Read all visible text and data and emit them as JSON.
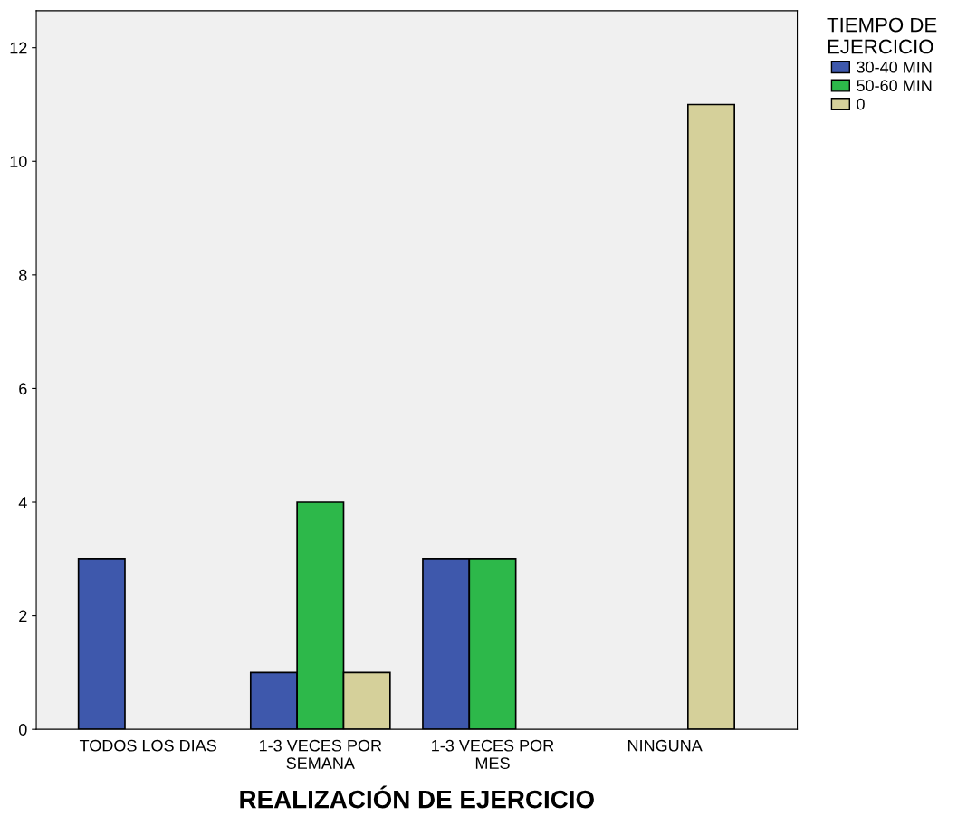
{
  "chart_data": {
    "type": "bar",
    "xlabel": "REALIZACIÓN DE EJERCICIO",
    "legend_title": "TIEMPO DE\nEJERCICIO",
    "categories": [
      "TODOS LOS DIAS",
      "1-3 VECES POR\nSEMANA",
      "1-3 VECES POR\nMES",
      "NINGUNA"
    ],
    "series": [
      {
        "name": "30-40 MIN",
        "color": "#3e58ac",
        "values": [
          3,
          1,
          3,
          null
        ]
      },
      {
        "name": "50-60 MIN",
        "color": "#2db84a",
        "values": [
          null,
          4,
          3,
          null
        ]
      },
      {
        "name": "0",
        "color": "#d5d09a",
        "values": [
          null,
          1,
          null,
          11
        ]
      }
    ],
    "ylim": [
      0,
      12.65
    ],
    "yticks": [
      0,
      2,
      4,
      6,
      8,
      10,
      12
    ],
    "grid": false,
    "legend": "top right"
  }
}
